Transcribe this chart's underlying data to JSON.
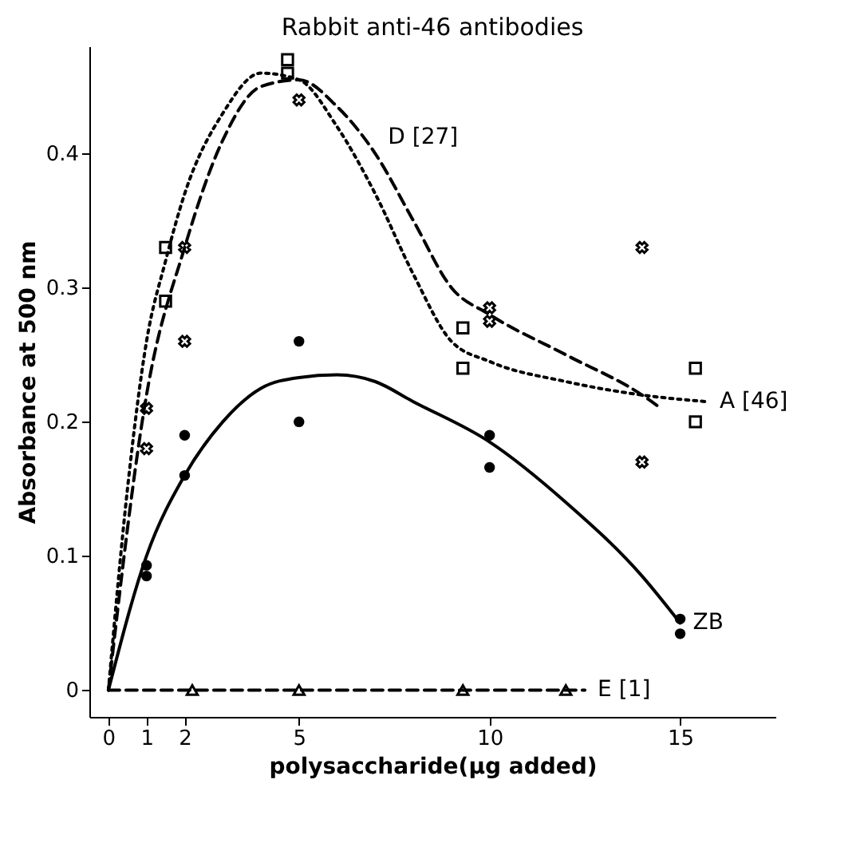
{
  "chart_data": {
    "type": "scatter",
    "title": "Rabbit anti-46 antibodies",
    "xlabel": "polysaccharide(μg added)",
    "ylabel": "Absorbance at 500 nm",
    "xlim": [
      -0.5,
      17.5
    ],
    "xticks": [
      0,
      1,
      2,
      5,
      10,
      15
    ],
    "ylim": [
      -0.02,
      0.48
    ],
    "yticks": [
      0,
      0.1,
      0.2,
      0.3,
      0.4
    ],
    "grid": false,
    "series": [
      {
        "type": "scatter",
        "marker": "square",
        "color": "#000000",
        "x": [
          1.5,
          1.5,
          4.7,
          4.7,
          9.3,
          9.3,
          15.4,
          15.4
        ],
        "values": [
          0.29,
          0.33,
          0.47,
          0.46,
          0.27,
          0.24,
          0.24,
          0.2
        ]
      },
      {
        "type": "scatter",
        "marker": "cross",
        "color": "#000000",
        "x": [
          1,
          1,
          2,
          2,
          5,
          10,
          10,
          14,
          14
        ],
        "values": [
          0.21,
          0.18,
          0.33,
          0.26,
          0.44,
          0.285,
          0.275,
          0.33,
          0.17
        ]
      },
      {
        "type": "scatter",
        "marker": "circle",
        "color": "#000000",
        "x": [
          1,
          1,
          2,
          2,
          5,
          5,
          10,
          10,
          15,
          15
        ],
        "values": [
          0.093,
          0.085,
          0.19,
          0.16,
          0.26,
          0.2,
          0.19,
          0.166,
          0.053,
          0.042
        ]
      },
      {
        "type": "scatter",
        "marker": "triangle",
        "color": "#000000",
        "x": [
          2.2,
          5,
          9.3,
          12
        ],
        "values": [
          0,
          0,
          0,
          0
        ]
      },
      {
        "type": "line",
        "name": "A [46]",
        "line_style": "dotted",
        "color": "#000000",
        "x": [
          0,
          0.5,
          1,
          1.5,
          2,
          3,
          4,
          5,
          6,
          7,
          8,
          9,
          10,
          12,
          14,
          15.7
        ],
        "values": [
          0,
          0.15,
          0.26,
          0.32,
          0.37,
          0.43,
          0.46,
          0.455,
          0.42,
          0.37,
          0.31,
          0.26,
          0.245,
          0.23,
          0.22,
          0.215
        ]
      },
      {
        "type": "line",
        "name": "D [27]",
        "line_style": "dashed",
        "color": "#000000",
        "x": [
          0,
          1,
          2,
          3,
          4,
          5,
          6,
          7,
          8,
          9,
          10,
          12,
          14,
          14.5
        ],
        "values": [
          0,
          0.22,
          0.33,
          0.41,
          0.45,
          0.455,
          0.435,
          0.4,
          0.35,
          0.3,
          0.28,
          0.25,
          0.22,
          0.21
        ]
      },
      {
        "type": "line",
        "name": "ZB",
        "line_style": "solid",
        "color": "#000000",
        "x": [
          0,
          1,
          2,
          3,
          4,
          5,
          6,
          7,
          8,
          10,
          12,
          14,
          15
        ],
        "values": [
          0,
          0.1,
          0.16,
          0.2,
          0.225,
          0.233,
          0.235,
          0.23,
          0.215,
          0.185,
          0.14,
          0.085,
          0.05
        ]
      },
      {
        "type": "line",
        "name": "E [1]",
        "line_style": "dashed",
        "color": "#000000",
        "x": [
          0,
          12.5
        ],
        "values": [
          0,
          0
        ]
      }
    ]
  }
}
